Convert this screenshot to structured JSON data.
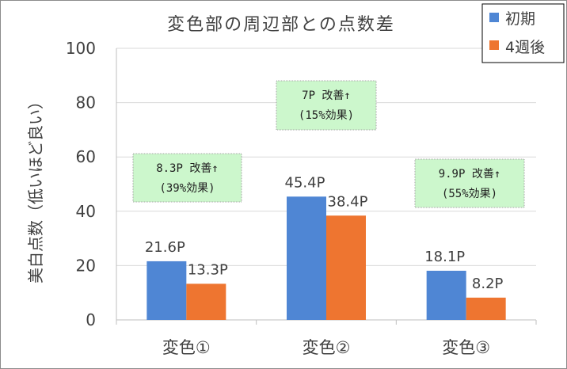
{
  "chart_data": {
    "type": "bar",
    "title": "変色部の周辺部との点数差",
    "ylabel": "美白点数（低いほど良い）",
    "xlabel": "",
    "ylim": [
      0,
      100
    ],
    "yticks": [
      "0",
      "20",
      "40",
      "60",
      "80",
      "100"
    ],
    "categories": [
      "変色①",
      "変色②",
      "変色③"
    ],
    "series": [
      {
        "name": "初期",
        "color": "#4f86d4",
        "values": [
          21.6,
          45.4,
          18.1
        ],
        "labels": [
          "21.6P",
          "45.4P",
          "18.1P"
        ]
      },
      {
        "name": "4週後",
        "color": "#ee7530",
        "values": [
          13.3,
          38.4,
          8.2
        ],
        "labels": [
          "13.3P",
          "38.4P",
          "8.2P"
        ]
      }
    ],
    "grid": true,
    "legend_position": "top-right",
    "annotations": [
      {
        "line1": "8.3P 改善↑",
        "line2": "(39%効果)"
      },
      {
        "line1": "7P 改善↑",
        "line2": "(15%効果)"
      },
      {
        "line1": "9.9P 改善↑",
        "line2": "(55%効果)"
      }
    ],
    "annotation_fill": "#ccf7cc"
  }
}
